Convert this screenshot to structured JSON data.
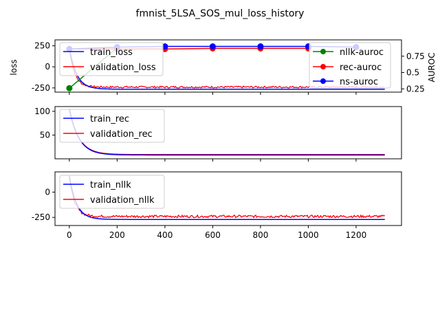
{
  "title": "fmnist_5LSA_SOS_mul_loss_history",
  "chart_data": [
    {
      "type": "line",
      "id": "top",
      "ylabel": "loss",
      "y2label": "AUROC",
      "xlim": [
        -60,
        1390
      ],
      "ylim": [
        -300,
        320
      ],
      "yticks": [
        250,
        0,
        -250
      ],
      "y2lim": [
        0.2,
        1.0
      ],
      "y2ticks": [
        0.75,
        0.5,
        0.25
      ],
      "legend_left": [
        "train_loss",
        "validation_loss"
      ],
      "legend_right": [
        "nllk-auroc",
        "rec-auroc",
        "ns-auroc"
      ],
      "colors": {
        "train": "#0000ff",
        "validation": "#ff0000",
        "nllk": "#008000",
        "rec": "#ff0000",
        "ns": "#0000ff"
      },
      "auroc_series": [
        {
          "name": "nllk-auroc",
          "x": [
            0,
            200
          ],
          "y": [
            0.26,
            0.88
          ]
        },
        {
          "name": "rec-auroc",
          "x": [
            0,
            200,
            400,
            600,
            800,
            1000
          ],
          "y": [
            0.86,
            0.86,
            0.86,
            0.87,
            0.87,
            0.87
          ]
        },
        {
          "name": "ns-auroc",
          "x": [
            0,
            200,
            400,
            600,
            800,
            1000,
            1200
          ],
          "y": [
            0.86,
            0.89,
            0.9,
            0.9,
            0.9,
            0.9,
            0.89
          ]
        }
      ],
      "loss_shape": {
        "start": 230,
        "plateau_train": -265,
        "plateau_val": -240,
        "x_max": 1320
      }
    },
    {
      "type": "line",
      "id": "mid",
      "xlim": [
        -60,
        1390
      ],
      "ylim": [
        0,
        110
      ],
      "yticks": [
        100,
        50
      ],
      "legend": [
        "train_rec",
        "validation_rec"
      ],
      "rec_shape": {
        "start": 105,
        "plateau_train": 8,
        "plateau_val": 9,
        "x_max": 1320
      }
    },
    {
      "type": "line",
      "id": "bot",
      "xlim": [
        -60,
        1390
      ],
      "ylim": [
        -330,
        200
      ],
      "yticks": [
        0,
        -250
      ],
      "xticks": [
        0,
        200,
        400,
        600,
        800,
        1000,
        1200
      ],
      "legend": [
        "train_nllk",
        "validation_nllk"
      ],
      "nllk_shape": {
        "start": 160,
        "plateau_train": -270,
        "plateau_val": -240,
        "x_max": 1320
      }
    }
  ]
}
